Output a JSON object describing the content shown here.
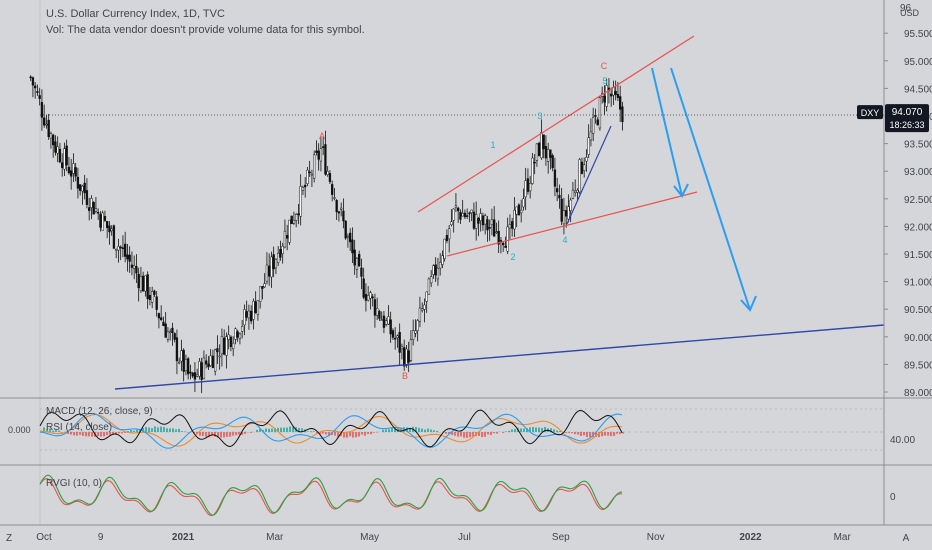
{
  "header": {
    "title": "U.S. Dollar Currency Index, 1D, TVC",
    "vol_note": "Vol: The data vendor doesn't provide volume data for this symbol."
  },
  "price_scale": {
    "currency": "USD",
    "top_label": "96",
    "ticks": [
      "95.500",
      "95.000",
      "94.500",
      "94.000",
      "93.500",
      "93.000",
      "92.500",
      "92.000",
      "91.500",
      "91.000",
      "90.500",
      "90.000",
      "89.500",
      "89.000"
    ],
    "last_symbol": "DXY",
    "last_price": "94.070",
    "countdown": "18:26:33"
  },
  "time_axis": [
    "Oct",
    "9",
    "2021",
    "Mar",
    "May",
    "Jul",
    "Sep",
    "Nov",
    "2022",
    "Mar"
  ],
  "corner_labels": {
    "left": "Z",
    "right": "A"
  },
  "wave_labels": {
    "A": "A",
    "B": "B",
    "C": "C",
    "w1": "1",
    "w2": "2",
    "w3": "3",
    "w4": "4",
    "w5": "5"
  },
  "panes": {
    "macd": {
      "label": "MACD (12, 26, close, 9)",
      "overlay_label": "RSI (14, close)",
      "left_value": "0.000",
      "right_value": "40.00"
    },
    "rvgi": {
      "label": "RVGI (10, 0)",
      "right_value": "0"
    }
  },
  "colors": {
    "background": "#d5d6d9",
    "candle_up": "#ffffff",
    "candle_down": "#111111",
    "channel": "#e8534f",
    "trendline": "#2f47a8",
    "projection": "#2a9df4",
    "wave_count": "#1cb0c9",
    "abc_label": "#e8534f",
    "macd_line": "#2a9df4",
    "signal_line": "#f08a2c",
    "rsi_line": "#111111",
    "rvgi_line": "#2ea043",
    "rvgi_signal": "#e8534f"
  },
  "chart_data": {
    "type": "candlestick",
    "symbol": "DXY",
    "interval": "1D",
    "ylim": [
      89.0,
      96.0
    ],
    "key_prices": [
      {
        "date": "2020-09-25",
        "price": 94.7
      },
      {
        "date": "2020-10-10",
        "price": 93.5
      },
      {
        "date": "2020-12-10",
        "price": 90.8
      },
      {
        "date": "2021-01-06",
        "price": 89.2
      },
      {
        "date": "2021-02-15",
        "price": 90.5
      },
      {
        "date": "2021-03-31",
        "price": 93.4
      },
      {
        "date": "2021-04-25",
        "price": 91.0
      },
      {
        "date": "2021-05-25",
        "price": 89.6
      },
      {
        "date": "2021-06-25",
        "price": 92.3
      },
      {
        "date": "2021-07-30",
        "price": 91.8
      },
      {
        "date": "2021-08-20",
        "price": 93.6
      },
      {
        "date": "2021-09-03",
        "price": 92.1
      },
      {
        "date": "2021-09-30",
        "price": 94.5
      },
      {
        "date": "2021-10-11",
        "price": 94.07
      }
    ],
    "last_price": 94.07
  }
}
